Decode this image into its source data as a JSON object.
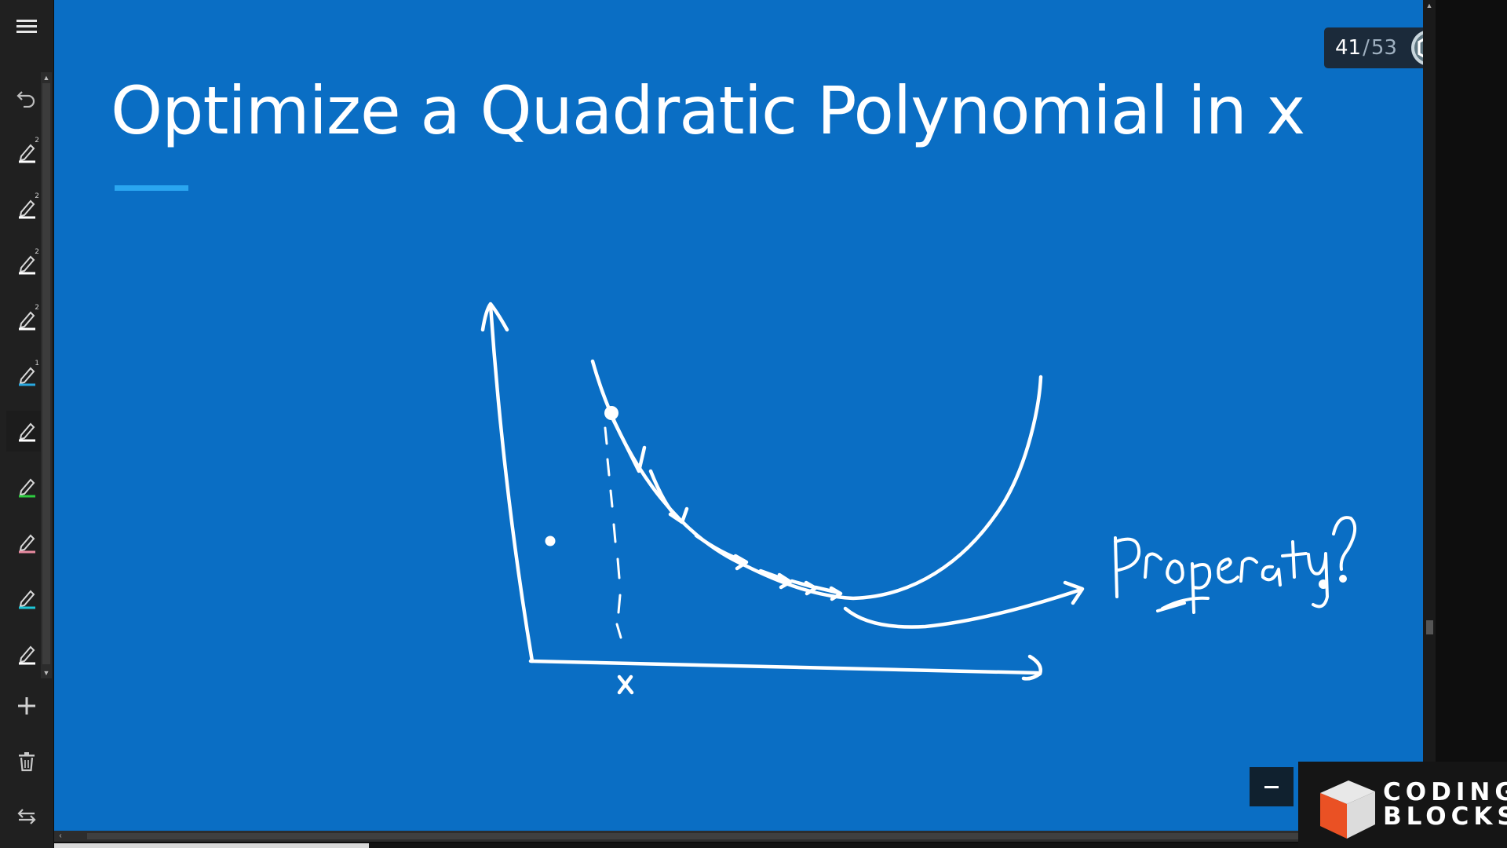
{
  "slide": {
    "title": "Optimize a Quadratic Polynomial in x",
    "background_color": "#0a6ec4",
    "annotations": {
      "property_label": "Property ?",
      "x_label": "x"
    }
  },
  "pager": {
    "current": "41",
    "separator": "/",
    "total": "53"
  },
  "toolbar": {
    "icons": [
      "menu-icon",
      "undo-icon",
      "pen-icon",
      "pen-icon",
      "pen-icon",
      "pen-icon",
      "pen-icon",
      "pen-icon",
      "pen-icon",
      "pen-icon",
      "pen-icon",
      "pen-icon",
      "add-icon",
      "trash-icon",
      "swap-icon"
    ],
    "pen_badges": [
      "2",
      "2",
      "2",
      "2",
      "1"
    ],
    "pen_colors": [
      "#ffffff",
      "#ffffff",
      "#ffffff",
      "#ffffff",
      "#29a8e0",
      "#ffffff",
      "#2ecc40",
      "#e88aa0",
      "#1ec6d6",
      "#ffffff"
    ]
  },
  "progress": {
    "fraction": 0.23
  },
  "branding": {
    "line1": "CODING",
    "line2": "BLOCKS"
  }
}
